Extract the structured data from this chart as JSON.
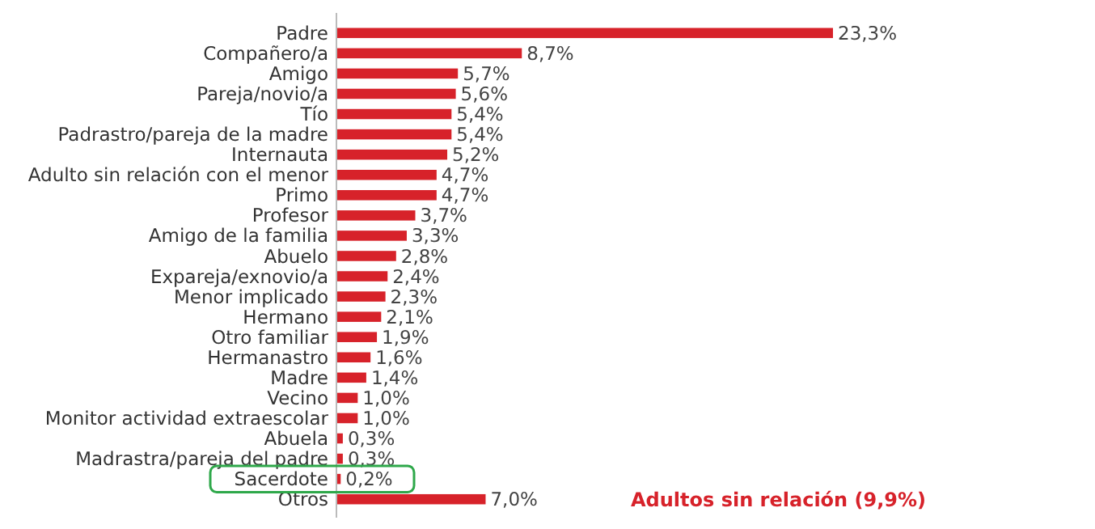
{
  "chart_data": {
    "type": "bar",
    "orientation": "horizontal",
    "categories": [
      "Padre",
      "Compañero/a",
      "Amigo",
      "Pareja/novio/a",
      "Tío",
      "Padrastro/pareja de la madre",
      "Internauta",
      "Adulto sin relación con el menor",
      "Primo",
      "Profesor",
      "Amigo de la familia",
      "Abuelo",
      "Expareja/exnovio/a",
      "Menor implicado",
      "Hermano",
      "Otro familiar",
      "Hermanastro",
      "Madre",
      "Vecino",
      "Monitor actividad extraescolar",
      "Abuela",
      "Madrastra/pareja del padre",
      "Sacerdote",
      "Otros"
    ],
    "values": [
      23.3,
      8.7,
      5.7,
      5.6,
      5.4,
      5.4,
      5.2,
      4.7,
      4.7,
      3.7,
      3.3,
      2.8,
      2.4,
      2.3,
      2.1,
      1.9,
      1.6,
      1.4,
      1.0,
      1.0,
      0.3,
      0.3,
      0.2,
      7.0
    ],
    "value_labels": [
      "23,3%",
      "8,7%",
      "5,7%",
      "5,6%",
      "5,4%",
      "5,4%",
      "5,2%",
      "4,7%",
      "4,7%",
      "3,7%",
      "3,3%",
      "2,8%",
      "2,4%",
      "2,3%",
      "2,1%",
      "1,9%",
      "1,6%",
      "1,4%",
      "1,0%",
      "1,0%",
      "0,3%",
      "0,3%",
      "0,2%",
      "7,0%"
    ],
    "color": "#d7222a",
    "annotations": [
      "Adultos sin relación (9,9%)"
    ]
  }
}
